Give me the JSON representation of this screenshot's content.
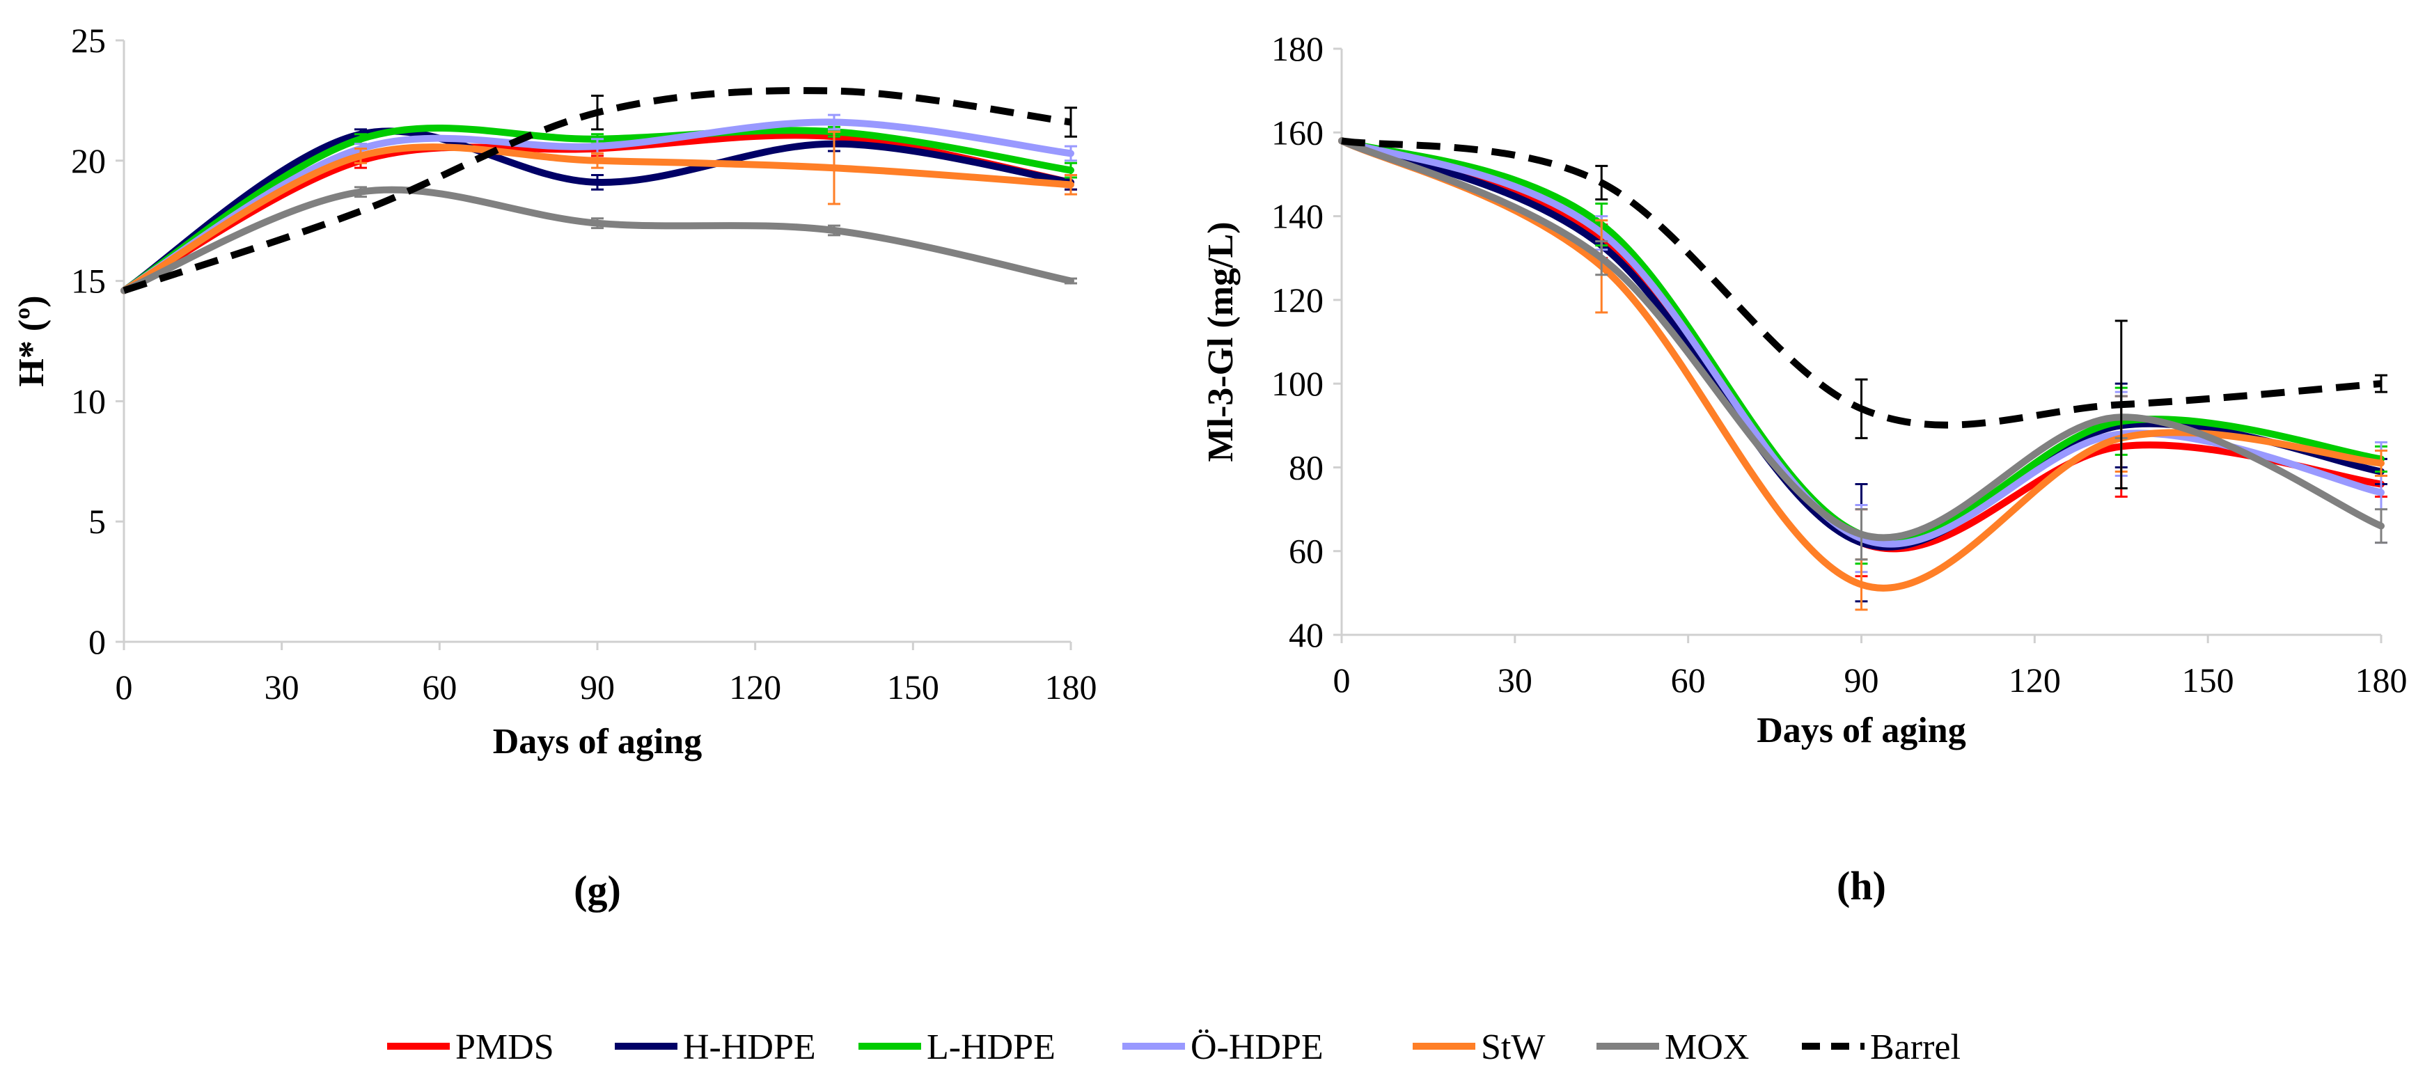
{
  "legend": [
    "PMDS",
    "H-HDPE",
    "L-HDPE",
    "Ö-HDPE",
    "StW",
    "MOX",
    "Barrel"
  ],
  "series_styles": {
    "PMDS": {
      "color": "#ff0000",
      "dash": false
    },
    "H-HDPE": {
      "color": "#000066",
      "dash": false
    },
    "L-HDPE": {
      "color": "#00cc00",
      "dash": false
    },
    "Ö-HDPE": {
      "color": "#9999ff",
      "dash": false
    },
    "StW": {
      "color": "#ff7f27",
      "dash": false
    },
    "MOX": {
      "color": "#808080",
      "dash": false
    },
    "Barrel": {
      "color": "#000000",
      "dash": true
    }
  },
  "chart_data": [
    {
      "type": "line",
      "panel_label": "(g)",
      "title": "",
      "xlabel": "Days of aging",
      "ylabel": "H* (º)",
      "xlim": [
        0,
        180
      ],
      "ylim": [
        0,
        25
      ],
      "xticks": [
        0,
        30,
        60,
        90,
        120,
        150,
        180
      ],
      "yticks": [
        0,
        5,
        10,
        15,
        20,
        25
      ],
      "x": [
        0,
        45,
        90,
        135,
        180
      ],
      "series": [
        {
          "name": "PMDS",
          "values": [
            14.6,
            20.0,
            20.5,
            21.0,
            19.1
          ],
          "errors": [
            0,
            0.3,
            0.3,
            0.3,
            0.3
          ]
        },
        {
          "name": "H-HDPE",
          "values": [
            14.6,
            21.1,
            19.1,
            20.7,
            19.1
          ],
          "errors": [
            0,
            0.2,
            0.3,
            0.3,
            0.3
          ]
        },
        {
          "name": "L-HDPE",
          "values": [
            14.6,
            20.9,
            20.9,
            21.2,
            19.6
          ],
          "errors": [
            0,
            0.2,
            0.2,
            0.2,
            0.3
          ]
        },
        {
          "name": "Ö-HDPE",
          "values": [
            14.6,
            20.5,
            20.6,
            21.6,
            20.3
          ],
          "errors": [
            0,
            0.2,
            0.3,
            0.3,
            0.3
          ]
        },
        {
          "name": "StW",
          "values": [
            14.6,
            20.2,
            20.0,
            19.7,
            19.0
          ],
          "errors": [
            0,
            0.3,
            0.3,
            1.5,
            0.4
          ]
        },
        {
          "name": "MOX",
          "values": [
            14.6,
            18.7,
            17.4,
            17.1,
            15.0
          ],
          "errors": [
            0,
            0.2,
            0.2,
            0.2,
            0.1
          ]
        },
        {
          "name": "Barrel",
          "values": [
            14.6,
            17.9,
            22.0,
            22.9,
            21.6
          ],
          "errors": [
            0,
            0,
            0.7,
            0,
            0.6
          ]
        }
      ]
    },
    {
      "type": "line",
      "panel_label": "(h)",
      "title": "",
      "xlabel": "Days of aging",
      "ylabel": "Ml-3-Gl (mg/L)",
      "xlim": [
        0,
        180
      ],
      "ylim": [
        40,
        180
      ],
      "xticks": [
        0,
        30,
        60,
        90,
        120,
        150,
        180
      ],
      "yticks": [
        40,
        60,
        80,
        100,
        120,
        140,
        160,
        180
      ],
      "x": [
        0,
        45,
        90,
        135,
        180
      ],
      "series": [
        {
          "name": "PMDS",
          "values": [
            158,
            134,
            62,
            85,
            76
          ],
          "errors": [
            0,
            4,
            8,
            12,
            3
          ]
        },
        {
          "name": "H-HDPE",
          "values": [
            158,
            133,
            62,
            90,
            79
          ],
          "errors": [
            0,
            4,
            14,
            10,
            3
          ]
        },
        {
          "name": "L-HDPE",
          "values": [
            158,
            138,
            64,
            91,
            82
          ],
          "errors": [
            0,
            5,
            7,
            8,
            3
          ]
        },
        {
          "name": "Ö-HDPE",
          "values": [
            158,
            136,
            63,
            88,
            74
          ],
          "errors": [
            0,
            4,
            8,
            10,
            12
          ]
        },
        {
          "name": "StW",
          "values": [
            158,
            128,
            52,
            87,
            81
          ],
          "errors": [
            0,
            11,
            6,
            8,
            3
          ]
        },
        {
          "name": "MOX",
          "values": [
            158,
            130,
            64,
            92,
            66
          ],
          "errors": [
            0,
            4,
            6,
            5,
            4
          ]
        },
        {
          "name": "Barrel",
          "values": [
            158,
            148,
            94,
            95,
            100
          ],
          "errors": [
            0,
            4,
            7,
            20,
            2
          ]
        }
      ]
    }
  ]
}
